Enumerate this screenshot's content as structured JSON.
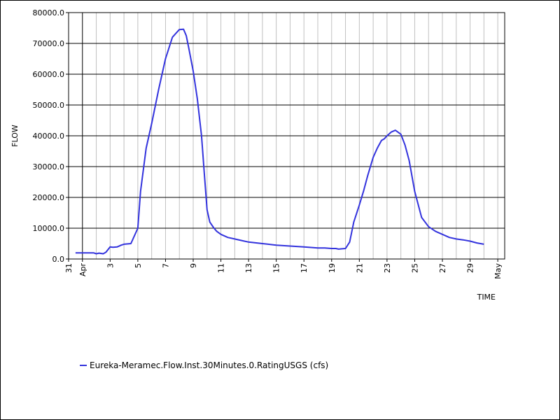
{
  "colors": {
    "series": "#3333dd",
    "grid_major": "#000000",
    "grid_minor": "#c0c0c0"
  },
  "chart_data": {
    "type": "line",
    "xlabel": "TIME",
    "ylabel": "FLOW",
    "ylim": [
      0,
      80000
    ],
    "y_ticks": [
      "0.0",
      "10000.0",
      "20000.0",
      "30000.0",
      "40000.0",
      "50000.0",
      "60000.0",
      "70000.0",
      "80000.0"
    ],
    "x_range_days": [
      -1,
      30.5
    ],
    "x_ticks": [
      {
        "day": -1,
        "label": "31"
      },
      {
        "day": 0,
        "label": "Apr"
      },
      {
        "day": 2,
        "label": "3"
      },
      {
        "day": 4,
        "label": "5"
      },
      {
        "day": 6,
        "label": "7"
      },
      {
        "day": 8,
        "label": "9"
      },
      {
        "day": 10,
        "label": "11"
      },
      {
        "day": 12,
        "label": "13"
      },
      {
        "day": 14,
        "label": "15"
      },
      {
        "day": 16,
        "label": "17"
      },
      {
        "day": 18,
        "label": "19"
      },
      {
        "day": 20,
        "label": "21"
      },
      {
        "day": 22,
        "label": "23"
      },
      {
        "day": 24,
        "label": "25"
      },
      {
        "day": 26,
        "label": "27"
      },
      {
        "day": 28,
        "label": "29"
      },
      {
        "day": 30,
        "label": "May"
      }
    ],
    "grid": true,
    "legend_position": "bottom-left",
    "series": [
      {
        "name": "Eureka-Meramec.Flow.Inst.30Minutes.0.RatingUSGS (cfs)",
        "x": [
          -0.5,
          0,
          0.5,
          0.8,
          1.0,
          1.2,
          1.5,
          1.7,
          2.0,
          2.2,
          2.5,
          2.8,
          3.0,
          3.5,
          4.0,
          4.2,
          4.4,
          4.6,
          5.0,
          5.5,
          6.0,
          6.5,
          7.0,
          7.3,
          7.5,
          7.7,
          8.0,
          8.3,
          8.6,
          8.8,
          9.0,
          9.2,
          9.5,
          9.7,
          10.0,
          10.5,
          11.0,
          11.5,
          12.0,
          13.0,
          14.0,
          15.0,
          16.0,
          17.0,
          17.5,
          18.0,
          18.3,
          18.5,
          18.7,
          19.0,
          19.3,
          19.6,
          20.0,
          20.3,
          20.6,
          21.0,
          21.3,
          21.6,
          21.8,
          22.0,
          22.3,
          22.6,
          23.0,
          23.3,
          23.6,
          24.0,
          24.5,
          25.0,
          25.5,
          26.0,
          26.5,
          27.0,
          27.5,
          28.0,
          28.5,
          29.0
        ],
        "values": [
          2000,
          2000,
          2000,
          2000,
          1700,
          1900,
          1700,
          2200,
          3900,
          3800,
          3900,
          4500,
          4800,
          5000,
          10000,
          22000,
          29000,
          36000,
          44000,
          55000,
          65000,
          72000,
          74500,
          74600,
          72500,
          68000,
          61000,
          52000,
          40000,
          28000,
          16000,
          12000,
          10000,
          9000,
          8000,
          7000,
          6500,
          6000,
          5500,
          5000,
          4500,
          4200,
          3900,
          3600,
          3600,
          3400,
          3400,
          3200,
          3300,
          3400,
          5500,
          12000,
          17500,
          22000,
          27000,
          33000,
          36000,
          38500,
          39000,
          40000,
          41200,
          41800,
          40500,
          37000,
          32000,
          22000,
          13500,
          10500,
          9000,
          8000,
          7000,
          6500,
          6200,
          5800,
          5200,
          4800
        ]
      }
    ]
  }
}
